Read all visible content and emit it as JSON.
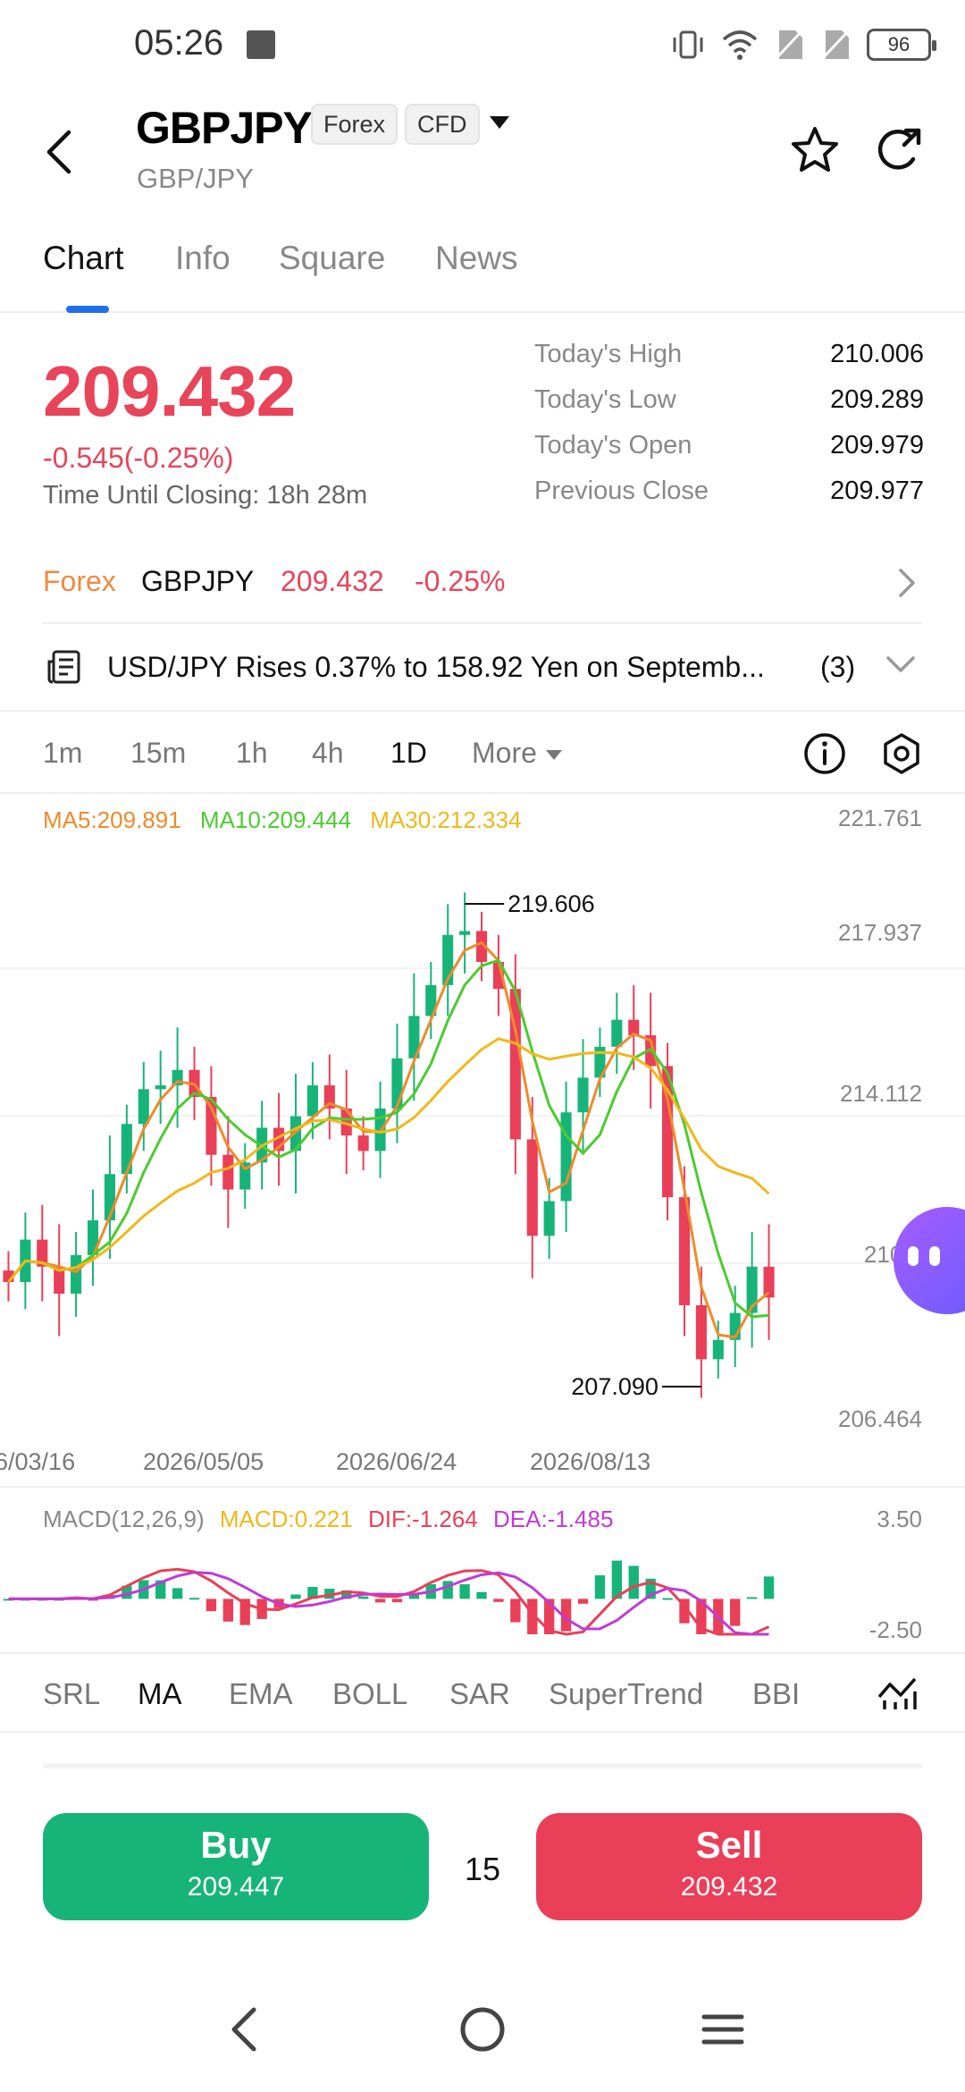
{
  "status_bar": {
    "time": "05:26",
    "battery": "96"
  },
  "header": {
    "symbol": "GBPJPY",
    "tags": [
      "Forex",
      "CFD"
    ],
    "subtitle": "GBP/JPY"
  },
  "tabs": [
    {
      "label": "Chart",
      "active": true
    },
    {
      "label": "Info",
      "active": false
    },
    {
      "label": "Square",
      "active": false
    },
    {
      "label": "News",
      "active": false
    }
  ],
  "quote": {
    "price": "209.432",
    "change": "-0.545(-0.25%)",
    "closing_label": "Time Until Closing:",
    "closing_value": "18h 28m",
    "stats": [
      {
        "label": "Today's High",
        "value": "210.006"
      },
      {
        "label": "Today's Low",
        "value": "209.289"
      },
      {
        "label": "Today's Open",
        "value": "209.979"
      },
      {
        "label": "Previous Close",
        "value": "209.977"
      }
    ]
  },
  "related": {
    "category": "Forex",
    "symbol": "GBPJPY",
    "price": "209.432",
    "change": "-0.25%"
  },
  "news": {
    "headline": "USD/JPY Rises 0.37% to 158.92 Yen on Septemb...",
    "count": "(3)"
  },
  "timeframes": {
    "items": [
      {
        "label": "1m",
        "active": false
      },
      {
        "label": "15m",
        "active": false
      },
      {
        "label": "1h",
        "active": false
      },
      {
        "label": "4h",
        "active": false
      },
      {
        "label": "1D",
        "active": true
      }
    ],
    "more_label": "More"
  },
  "chart_data": {
    "type": "candlestick",
    "ma_legend": [
      {
        "label": "MA5:209.891",
        "color": "#f08a2a"
      },
      {
        "label": "MA10:209.444",
        "color": "#4ccb2f"
      },
      {
        "label": "MA30:212.334",
        "color": "#f0b81a"
      }
    ],
    "price_ticks": [
      "221.761",
      "217.937",
      "214.112",
      "210.2",
      "206.464"
    ],
    "date_ticks": [
      "6/03/16",
      "2026/05/05",
      "2026/06/24",
      "2026/08/13"
    ],
    "high_label": "219.606",
    "low_label": "207.090",
    "ylim": [
      206.464,
      221.761
    ],
    "up_color": "#17b479",
    "down_color": "#ea3f58",
    "close_series": [
      209.8,
      210.9,
      210.2,
      209.5,
      210.5,
      211.4,
      212.6,
      213.9,
      214.8,
      214.9,
      215.3,
      214.6,
      213.1,
      212.2,
      212.9,
      213.8,
      213.2,
      214.1,
      214.9,
      214.3,
      213.6,
      213.2,
      214.3,
      215.6,
      216.7,
      217.5,
      218.8,
      218.9,
      218.1,
      217.4,
      213.5,
      211.0,
      211.9,
      214.2,
      215.1,
      215.9,
      216.6,
      216.2,
      215.4,
      212.0,
      209.2,
      207.8,
      208.3,
      209.0,
      210.2,
      209.4
    ],
    "macd": {
      "legend": [
        {
          "label": "MACD(12,26,9)",
          "color": "#888888"
        },
        {
          "label": "MACD:0.221",
          "color": "#f0b81a"
        },
        {
          "label": "DIF:-1.264",
          "color": "#ea3f58"
        },
        {
          "label": "DEA:-1.485",
          "color": "#c23ad6"
        }
      ],
      "ticks": [
        "3.50",
        "-2.50"
      ],
      "ylim": [
        -2.5,
        3.5
      ]
    }
  },
  "indicators": [
    {
      "label": "SRL",
      "active": false
    },
    {
      "label": "MA",
      "active": true
    },
    {
      "label": "EMA",
      "active": false
    },
    {
      "label": "BOLL",
      "active": false
    },
    {
      "label": "SAR",
      "active": false
    },
    {
      "label": "SuperTrend",
      "active": false
    },
    {
      "label": "BBI",
      "active": false
    }
  ],
  "trade": {
    "buy_label": "Buy",
    "buy_price": "209.447",
    "lot": "15",
    "sell_label": "Sell",
    "sell_price": "209.432"
  }
}
